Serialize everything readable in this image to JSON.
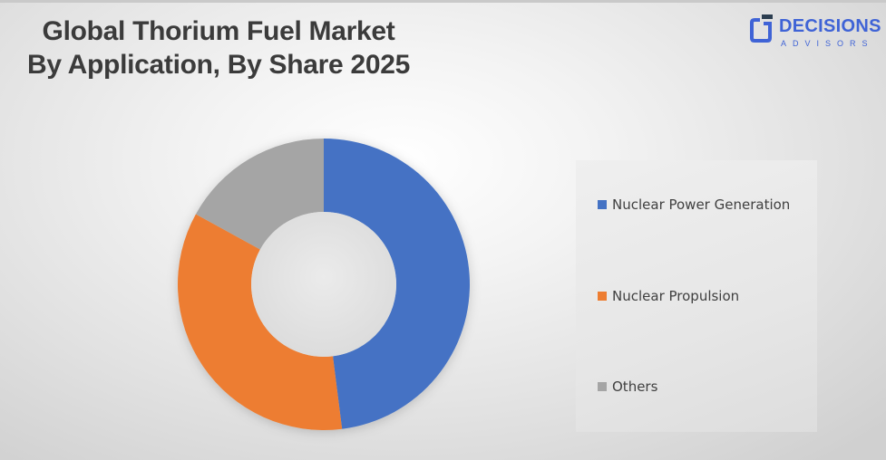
{
  "title": {
    "line1": "Global Thorium Fuel Market",
    "line2": "By Application, By Share 2025"
  },
  "logo": {
    "name": "DECISIONS",
    "sub": "ADVISORS",
    "color": "#3f63d6"
  },
  "legend": {
    "items": [
      {
        "label": "Nuclear Power Generation",
        "color": "#4472c4"
      },
      {
        "label": "Nuclear Propulsion",
        "color": "#ed7d31"
      },
      {
        "label": "Others",
        "color": "#a5a5a5"
      }
    ]
  },
  "chart_data": {
    "type": "pie",
    "subtype": "donut",
    "title": "Global Thorium Fuel Market By Application, By Share 2025",
    "categories": [
      "Nuclear Power Generation",
      "Nuclear Propulsion",
      "Others"
    ],
    "values": [
      48,
      35,
      17
    ],
    "unit": "%",
    "colors": [
      "#4472c4",
      "#ed7d31",
      "#a5a5a5"
    ],
    "start_angle_deg": 0,
    "direction": "clockwise",
    "data_labels": false,
    "legend_position": "right"
  }
}
